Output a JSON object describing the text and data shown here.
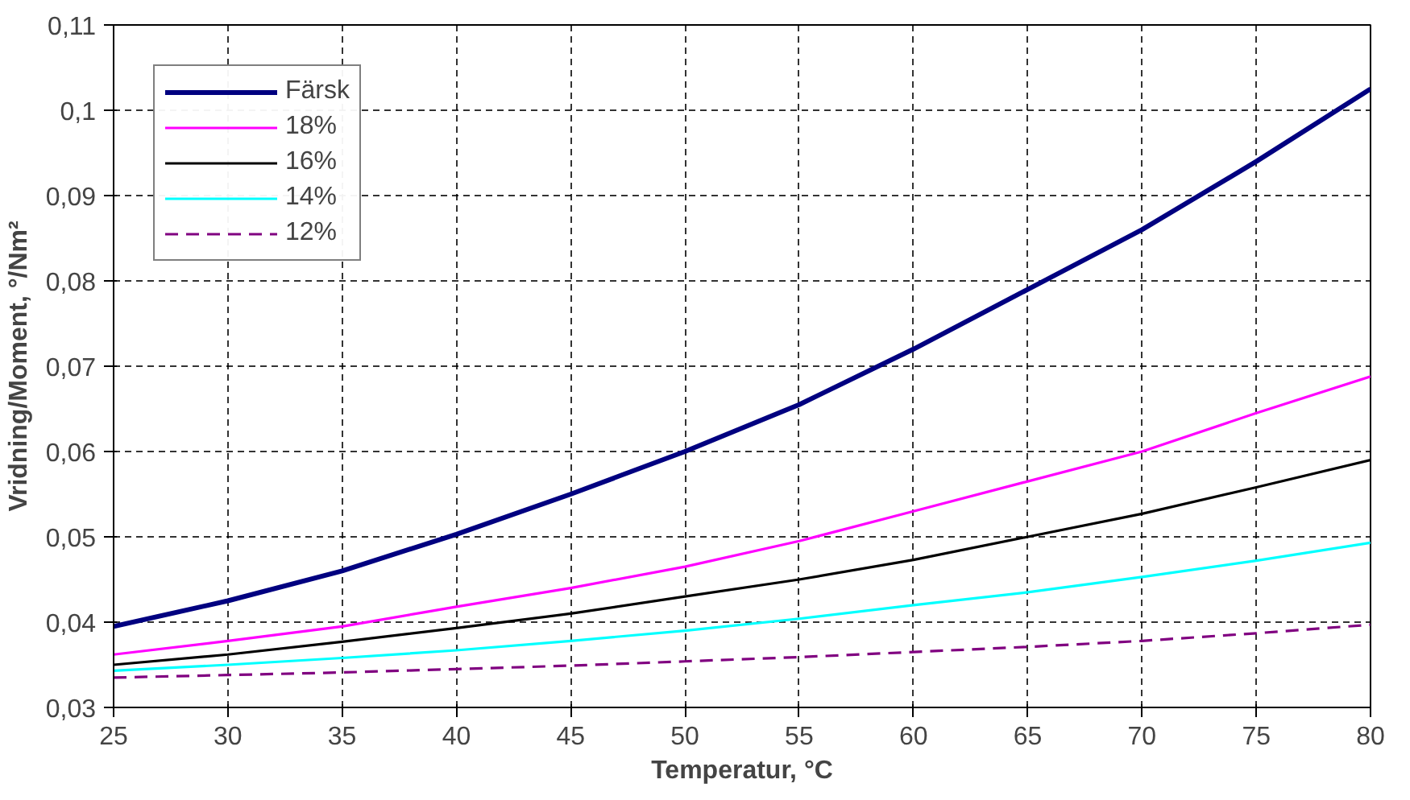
{
  "chart_data": {
    "type": "line",
    "xlabel": "Temperatur, °C",
    "ylabel": "Vridning/Moment, °/Nm²",
    "x": [
      25,
      30,
      35,
      40,
      45,
      50,
      55,
      60,
      65,
      70,
      75,
      80
    ],
    "series": [
      {
        "name": "Färsk",
        "color": "#000080",
        "line_style": "solid",
        "values": [
          0.0395,
          0.0425,
          0.046,
          0.0503,
          0.055,
          0.06,
          0.0655,
          0.072,
          0.079,
          0.086,
          0.094,
          0.1025
        ]
      },
      {
        "name": "18%",
        "color": "#ff00ff",
        "line_style": "solid",
        "values": [
          0.0362,
          0.0378,
          0.0395,
          0.0418,
          0.044,
          0.0465,
          0.0495,
          0.053,
          0.0565,
          0.06,
          0.0645,
          0.0688
        ]
      },
      {
        "name": "16%",
        "color": "#000000",
        "line_style": "solid",
        "values": [
          0.035,
          0.0362,
          0.0377,
          0.0393,
          0.041,
          0.043,
          0.045,
          0.0473,
          0.05,
          0.0527,
          0.0558,
          0.059
        ]
      },
      {
        "name": "14%",
        "color": "#00ffff",
        "line_style": "solid",
        "values": [
          0.0343,
          0.035,
          0.0358,
          0.0367,
          0.0378,
          0.039,
          0.0404,
          0.042,
          0.0435,
          0.0453,
          0.0472,
          0.0493
        ]
      },
      {
        "name": "12%",
        "color": "#800080",
        "line_style": "dashed",
        "values": [
          0.0335,
          0.0338,
          0.0341,
          0.0345,
          0.0349,
          0.0354,
          0.0359,
          0.0365,
          0.0371,
          0.0378,
          0.0387,
          0.0397
        ]
      }
    ],
    "xlim": [
      25,
      80
    ],
    "xticks": [
      25,
      30,
      35,
      40,
      45,
      50,
      55,
      60,
      65,
      70,
      75,
      80
    ],
    "ylim": [
      0.03,
      0.11
    ],
    "yticks": [
      {
        "value": 0.03,
        "label": "0,03"
      },
      {
        "value": 0.04,
        "label": "0,04"
      },
      {
        "value": 0.05,
        "label": "0,05"
      },
      {
        "value": 0.06,
        "label": "0,06"
      },
      {
        "value": 0.07,
        "label": "0,07"
      },
      {
        "value": 0.08,
        "label": "0,08"
      },
      {
        "value": 0.09,
        "label": "0,09"
      },
      {
        "value": 0.1,
        "label": "0,1"
      },
      {
        "value": 0.11,
        "label": "0,11"
      }
    ],
    "grid": true,
    "legend": "top left",
    "marker": "none"
  }
}
